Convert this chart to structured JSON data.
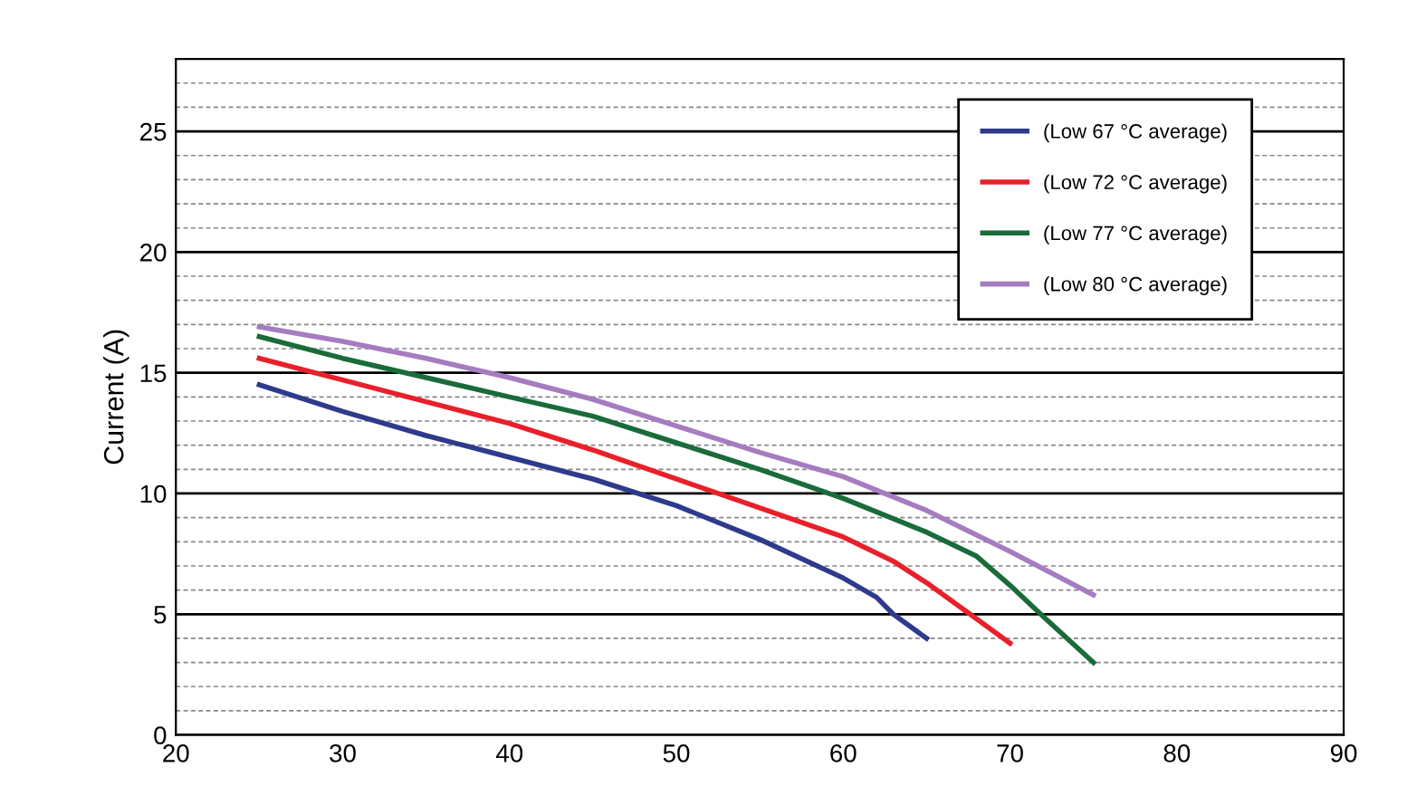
{
  "chart_data": {
    "type": "line",
    "ylabel": "Current (A)",
    "xlim": [
      20,
      90
    ],
    "xticks": [
      20,
      30,
      40,
      50,
      60,
      70,
      80,
      90
    ],
    "ylim": [
      0,
      28
    ],
    "yticks": [
      0,
      5,
      10,
      15,
      20,
      25
    ],
    "grid": "y",
    "legend": "top right",
    "marker": "none",
    "line_style": "solid",
    "series": [
      {
        "name": "(Low 67 °C average)",
        "color": "#2e3a8c",
        "x": [
          25,
          30,
          35,
          40,
          45,
          50,
          55,
          60,
          62,
          63,
          65
        ],
        "values": [
          14.5,
          13.4,
          12.4,
          11.5,
          10.6,
          9.5,
          8.1,
          6.5,
          5.7,
          5.0,
          4.0
        ]
      },
      {
        "name": "(Low 72 °C average)",
        "color": "#e8202a",
        "x": [
          25,
          30,
          35,
          40,
          45,
          50,
          55,
          60,
          63,
          65,
          68,
          70
        ],
        "values": [
          15.6,
          14.7,
          13.8,
          12.9,
          11.8,
          10.6,
          9.4,
          8.2,
          7.2,
          6.3,
          4.8,
          3.8
        ]
      },
      {
        "name": "(Low 77 °C average)",
        "color": "#1a6b3a",
        "x": [
          25,
          30,
          35,
          40,
          45,
          50,
          55,
          60,
          65,
          68,
          70,
          72,
          75
        ],
        "values": [
          16.5,
          15.6,
          14.8,
          14.0,
          13.2,
          12.1,
          11.0,
          9.8,
          8.4,
          7.4,
          6.2,
          4.9,
          3.0
        ]
      },
      {
        "name": "(Low 80 °C average)",
        "color": "#a57cc0",
        "x": [
          25,
          30,
          35,
          40,
          45,
          50,
          55,
          60,
          65,
          70,
          75
        ],
        "values": [
          16.9,
          16.3,
          15.6,
          14.8,
          13.9,
          12.8,
          11.7,
          10.7,
          9.3,
          7.6,
          5.8
        ]
      }
    ]
  }
}
